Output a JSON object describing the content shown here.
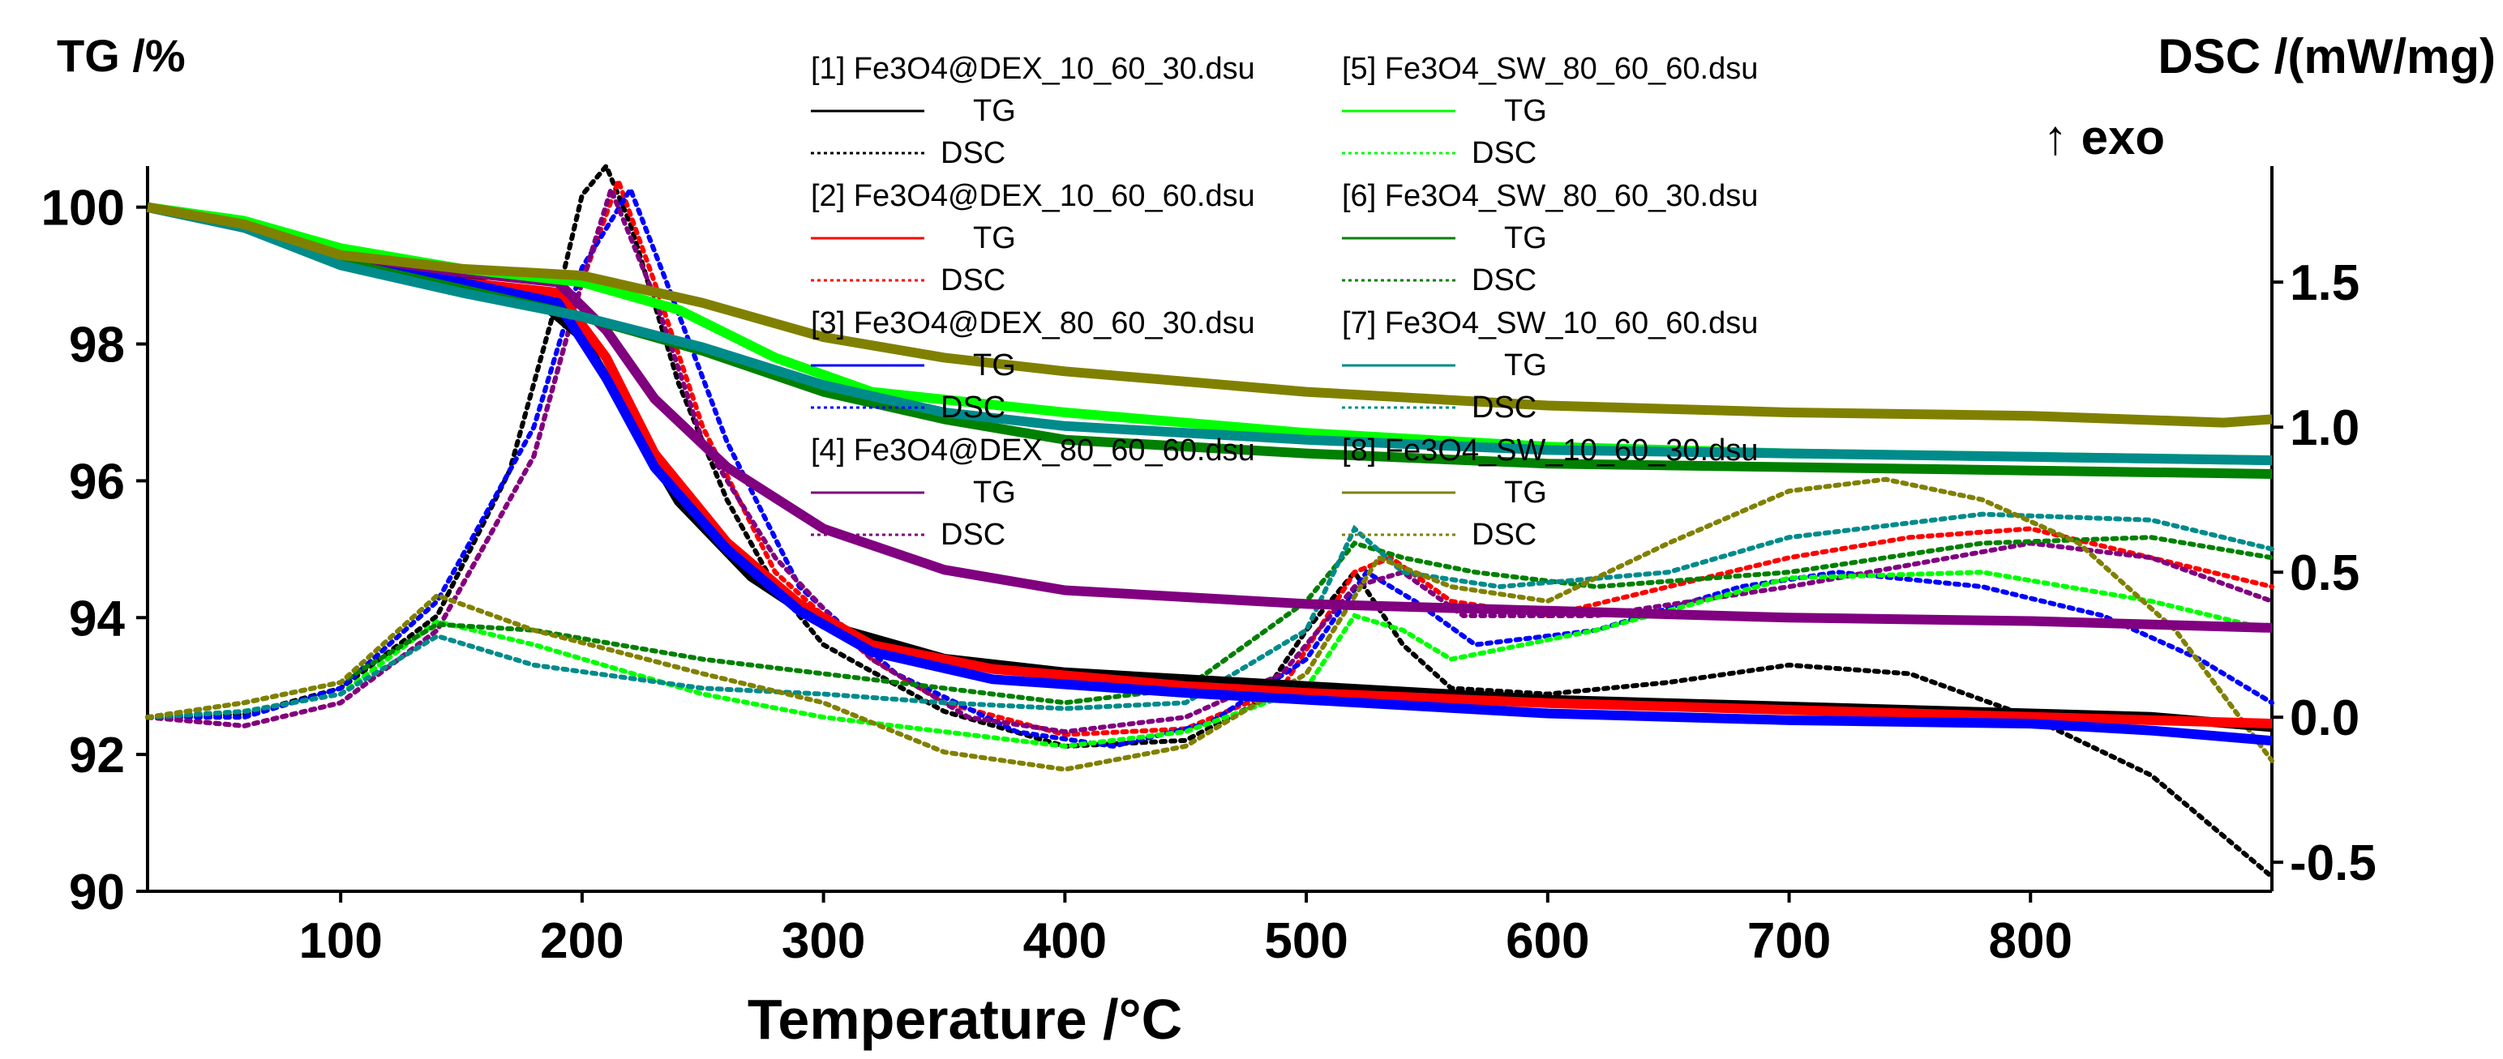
{
  "chart_data": {
    "type": "line",
    "x_label": "Temperature /°C",
    "y_left_label": "TG /%",
    "y_right_label": "DSC /(mW/mg)",
    "y_right_sublabel": "↑ exo",
    "x_range": [
      20,
      900
    ],
    "y_left_range": [
      90,
      100.6
    ],
    "y_right_range": [
      -0.6,
      1.9
    ],
    "x_ticks": [
      100,
      200,
      300,
      400,
      500,
      600,
      700,
      800
    ],
    "y_left_ticks": [
      90,
      92,
      94,
      96,
      98,
      100
    ],
    "y_right_ticks": [
      -0.5,
      0.0,
      0.5,
      1.0,
      1.5
    ],
    "y_right_tick_labels": [
      "-0.5",
      "0.0",
      "0.5",
      "1.0",
      "1.5"
    ],
    "tg_legend_label": "TG",
    "dsc_legend_label": "DSC",
    "datasets": [
      {
        "name": "[1] Fe3O4@DEX_10_60_30.dsu",
        "color": "#000000",
        "tg": [
          [
            20,
            100
          ],
          [
            60,
            99.75
          ],
          [
            100,
            99.3
          ],
          [
            150,
            98.95
          ],
          [
            180,
            98.7
          ],
          [
            200,
            98.1
          ],
          [
            220,
            96.9
          ],
          [
            240,
            95.7
          ],
          [
            270,
            94.6
          ],
          [
            300,
            93.9
          ],
          [
            350,
            93.4
          ],
          [
            400,
            93.2
          ],
          [
            450,
            93.1
          ],
          [
            500,
            93.0
          ],
          [
            600,
            92.8
          ],
          [
            700,
            92.7
          ],
          [
            800,
            92.6
          ],
          [
            850,
            92.55
          ],
          [
            900,
            92.4
          ]
        ],
        "dsc": [
          [
            20,
            0.0
          ],
          [
            60,
            0.01
          ],
          [
            100,
            0.1
          ],
          [
            140,
            0.35
          ],
          [
            170,
            0.85
          ],
          [
            190,
            1.45
          ],
          [
            200,
            1.8
          ],
          [
            210,
            1.9
          ],
          [
            220,
            1.7
          ],
          [
            240,
            1.15
          ],
          [
            260,
            0.75
          ],
          [
            280,
            0.45
          ],
          [
            300,
            0.25
          ],
          [
            350,
            0.02
          ],
          [
            400,
            -0.1
          ],
          [
            450,
            -0.08
          ],
          [
            480,
            0.05
          ],
          [
            500,
            0.3
          ],
          [
            520,
            0.5
          ],
          [
            540,
            0.25
          ],
          [
            560,
            0.1
          ],
          [
            600,
            0.08
          ],
          [
            650,
            0.12
          ],
          [
            700,
            0.18
          ],
          [
            750,
            0.15
          ],
          [
            800,
            0.0
          ],
          [
            850,
            -0.2
          ],
          [
            900,
            -0.55
          ]
        ]
      },
      {
        "name": "[2] Fe3O4@DEX_10_60_60.dsu",
        "color": "#ff0000",
        "tg": [
          [
            20,
            100
          ],
          [
            60,
            99.7
          ],
          [
            100,
            99.25
          ],
          [
            150,
            98.9
          ],
          [
            190,
            98.75
          ],
          [
            210,
            97.8
          ],
          [
            230,
            96.4
          ],
          [
            260,
            95.1
          ],
          [
            290,
            94.2
          ],
          [
            320,
            93.6
          ],
          [
            370,
            93.25
          ],
          [
            450,
            93.0
          ],
          [
            500,
            92.9
          ],
          [
            600,
            92.75
          ],
          [
            700,
            92.65
          ],
          [
            800,
            92.55
          ],
          [
            850,
            92.5
          ],
          [
            900,
            92.45
          ]
        ],
        "dsc": [
          [
            20,
            0.0
          ],
          [
            60,
            -0.03
          ],
          [
            100,
            0.05
          ],
          [
            140,
            0.3
          ],
          [
            180,
            0.9
          ],
          [
            200,
            1.5
          ],
          [
            215,
            1.85
          ],
          [
            230,
            1.5
          ],
          [
            250,
            1.0
          ],
          [
            280,
            0.5
          ],
          [
            320,
            0.2
          ],
          [
            350,
            0.05
          ],
          [
            400,
            -0.06
          ],
          [
            450,
            -0.04
          ],
          [
            490,
            0.1
          ],
          [
            520,
            0.5
          ],
          [
            535,
            0.55
          ],
          [
            560,
            0.4
          ],
          [
            600,
            0.35
          ],
          [
            650,
            0.45
          ],
          [
            700,
            0.55
          ],
          [
            750,
            0.62
          ],
          [
            800,
            0.65
          ],
          [
            850,
            0.55
          ],
          [
            900,
            0.45
          ]
        ]
      },
      {
        "name": "[3] Fe3O4@DEX_80_60_30.dsu",
        "color": "#0000ff",
        "tg": [
          [
            20,
            100
          ],
          [
            60,
            99.7
          ],
          [
            100,
            99.2
          ],
          [
            150,
            98.9
          ],
          [
            190,
            98.6
          ],
          [
            210,
            97.5
          ],
          [
            230,
            96.2
          ],
          [
            260,
            95.0
          ],
          [
            290,
            94.1
          ],
          [
            320,
            93.5
          ],
          [
            370,
            93.1
          ],
          [
            450,
            92.9
          ],
          [
            500,
            92.8
          ],
          [
            600,
            92.6
          ],
          [
            700,
            92.5
          ],
          [
            800,
            92.45
          ],
          [
            850,
            92.35
          ],
          [
            900,
            92.2
          ]
        ],
        "dsc": [
          [
            20,
            0.0
          ],
          [
            60,
            0.0
          ],
          [
            100,
            0.1
          ],
          [
            140,
            0.4
          ],
          [
            180,
            1.0
          ],
          [
            200,
            1.55
          ],
          [
            220,
            1.82
          ],
          [
            235,
            1.5
          ],
          [
            260,
            0.95
          ],
          [
            290,
            0.45
          ],
          [
            330,
            0.15
          ],
          [
            380,
            -0.05
          ],
          [
            420,
            -0.1
          ],
          [
            460,
            -0.02
          ],
          [
            500,
            0.2
          ],
          [
            525,
            0.5
          ],
          [
            545,
            0.4
          ],
          [
            570,
            0.25
          ],
          [
            620,
            0.3
          ],
          [
            680,
            0.45
          ],
          [
            720,
            0.5
          ],
          [
            780,
            0.45
          ],
          [
            830,
            0.35
          ],
          [
            870,
            0.2
          ],
          [
            900,
            0.05
          ]
        ]
      },
      {
        "name": "[4] Fe3O4@DEX_80_60_60.dsu",
        "color": "#800080",
        "tg": [
          [
            20,
            100
          ],
          [
            60,
            99.72
          ],
          [
            100,
            99.3
          ],
          [
            150,
            99.05
          ],
          [
            190,
            98.9
          ],
          [
            210,
            98.2
          ],
          [
            230,
            97.2
          ],
          [
            260,
            96.2
          ],
          [
            300,
            95.3
          ],
          [
            350,
            94.7
          ],
          [
            400,
            94.4
          ],
          [
            500,
            94.2
          ],
          [
            600,
            94.1
          ],
          [
            700,
            94.0
          ],
          [
            800,
            93.95
          ],
          [
            900,
            93.85
          ]
        ],
        "dsc": [
          [
            20,
            0.0
          ],
          [
            60,
            -0.03
          ],
          [
            100,
            0.05
          ],
          [
            140,
            0.3
          ],
          [
            180,
            0.9
          ],
          [
            200,
            1.5
          ],
          [
            212,
            1.82
          ],
          [
            230,
            1.45
          ],
          [
            250,
            0.95
          ],
          [
            280,
            0.55
          ],
          [
            320,
            0.2
          ],
          [
            360,
            0.0
          ],
          [
            400,
            -0.05
          ],
          [
            450,
            0.0
          ],
          [
            490,
            0.15
          ],
          [
            520,
            0.45
          ],
          [
            540,
            0.5
          ],
          [
            565,
            0.35
          ],
          [
            620,
            0.35
          ],
          [
            700,
            0.45
          ],
          [
            800,
            0.6
          ],
          [
            850,
            0.55
          ],
          [
            900,
            0.4
          ]
        ]
      },
      {
        "name": "[5] Fe3O4_SW_80_60_60.dsu",
        "color": "#00ff00",
        "tg": [
          [
            20,
            100
          ],
          [
            60,
            99.8
          ],
          [
            100,
            99.4
          ],
          [
            150,
            99.1
          ],
          [
            200,
            98.9
          ],
          [
            240,
            98.5
          ],
          [
            280,
            97.8
          ],
          [
            320,
            97.3
          ],
          [
            400,
            97.0
          ],
          [
            500,
            96.7
          ],
          [
            600,
            96.5
          ],
          [
            700,
            96.4
          ],
          [
            800,
            96.35
          ],
          [
            900,
            96.3
          ]
        ],
        "dsc": [
          [
            20,
            0.0
          ],
          [
            60,
            0.02
          ],
          [
            100,
            0.08
          ],
          [
            140,
            0.33
          ],
          [
            180,
            0.25
          ],
          [
            250,
            0.08
          ],
          [
            300,
            0.0
          ],
          [
            350,
            -0.05
          ],
          [
            400,
            -0.1
          ],
          [
            450,
            -0.05
          ],
          [
            500,
            0.1
          ],
          [
            520,
            0.35
          ],
          [
            540,
            0.3
          ],
          [
            560,
            0.2
          ],
          [
            620,
            0.3
          ],
          [
            700,
            0.48
          ],
          [
            780,
            0.5
          ],
          [
            850,
            0.4
          ],
          [
            900,
            0.3
          ]
        ]
      },
      {
        "name": "[6] Fe3O4_SW_80_60_30.dsu",
        "color": "#008000",
        "tg": [
          [
            20,
            100
          ],
          [
            60,
            99.7
          ],
          [
            100,
            99.2
          ],
          [
            150,
            98.8
          ],
          [
            200,
            98.4
          ],
          [
            250,
            97.9
          ],
          [
            300,
            97.3
          ],
          [
            350,
            96.9
          ],
          [
            400,
            96.6
          ],
          [
            500,
            96.4
          ],
          [
            600,
            96.25
          ],
          [
            700,
            96.2
          ],
          [
            800,
            96.15
          ],
          [
            900,
            96.1
          ]
        ],
        "dsc": [
          [
            20,
            0.0
          ],
          [
            60,
            0.05
          ],
          [
            100,
            0.12
          ],
          [
            140,
            0.32
          ],
          [
            180,
            0.3
          ],
          [
            250,
            0.2
          ],
          [
            300,
            0.15
          ],
          [
            350,
            0.1
          ],
          [
            400,
            0.05
          ],
          [
            450,
            0.1
          ],
          [
            500,
            0.4
          ],
          [
            520,
            0.6
          ],
          [
            540,
            0.55
          ],
          [
            570,
            0.5
          ],
          [
            620,
            0.45
          ],
          [
            700,
            0.5
          ],
          [
            780,
            0.6
          ],
          [
            850,
            0.62
          ],
          [
            900,
            0.55
          ]
        ]
      },
      {
        "name": "[7] Fe3O4_SW_10_60_60.dsu",
        "color": "#008b8b",
        "tg": [
          [
            20,
            100
          ],
          [
            60,
            99.7
          ],
          [
            100,
            99.15
          ],
          [
            150,
            98.75
          ],
          [
            200,
            98.4
          ],
          [
            250,
            97.95
          ],
          [
            300,
            97.4
          ],
          [
            350,
            97.0
          ],
          [
            400,
            96.8
          ],
          [
            500,
            96.6
          ],
          [
            600,
            96.45
          ],
          [
            700,
            96.4
          ],
          [
            800,
            96.35
          ],
          [
            900,
            96.3
          ]
        ],
        "dsc": [
          [
            20,
            0.0
          ],
          [
            60,
            0.02
          ],
          [
            100,
            0.08
          ],
          [
            140,
            0.28
          ],
          [
            180,
            0.18
          ],
          [
            250,
            0.1
          ],
          [
            300,
            0.08
          ],
          [
            350,
            0.05
          ],
          [
            400,
            0.03
          ],
          [
            450,
            0.05
          ],
          [
            500,
            0.3
          ],
          [
            520,
            0.65
          ],
          [
            540,
            0.5
          ],
          [
            580,
            0.45
          ],
          [
            650,
            0.5
          ],
          [
            700,
            0.62
          ],
          [
            780,
            0.7
          ],
          [
            850,
            0.68
          ],
          [
            900,
            0.58
          ]
        ]
      },
      {
        "name": "[8] Fe3O4_SW_10_60_30.dsu",
        "color": "#808000",
        "tg": [
          [
            20,
            100
          ],
          [
            60,
            99.75
          ],
          [
            100,
            99.3
          ],
          [
            150,
            99.1
          ],
          [
            200,
            99.0
          ],
          [
            250,
            98.6
          ],
          [
            300,
            98.1
          ],
          [
            350,
            97.8
          ],
          [
            400,
            97.6
          ],
          [
            500,
            97.3
          ],
          [
            600,
            97.1
          ],
          [
            700,
            97.0
          ],
          [
            800,
            96.95
          ],
          [
            880,
            96.85
          ],
          [
            900,
            96.9
          ]
        ],
        "dsc": [
          [
            20,
            0.0
          ],
          [
            60,
            0.05
          ],
          [
            100,
            0.12
          ],
          [
            140,
            0.42
          ],
          [
            180,
            0.3
          ],
          [
            250,
            0.15
          ],
          [
            300,
            0.05
          ],
          [
            350,
            -0.12
          ],
          [
            400,
            -0.18
          ],
          [
            450,
            -0.1
          ],
          [
            500,
            0.15
          ],
          [
            530,
            0.55
          ],
          [
            560,
            0.45
          ],
          [
            600,
            0.4
          ],
          [
            650,
            0.6
          ],
          [
            700,
            0.78
          ],
          [
            740,
            0.82
          ],
          [
            780,
            0.75
          ],
          [
            820,
            0.6
          ],
          [
            860,
            0.3
          ],
          [
            900,
            -0.15
          ]
        ]
      }
    ]
  }
}
